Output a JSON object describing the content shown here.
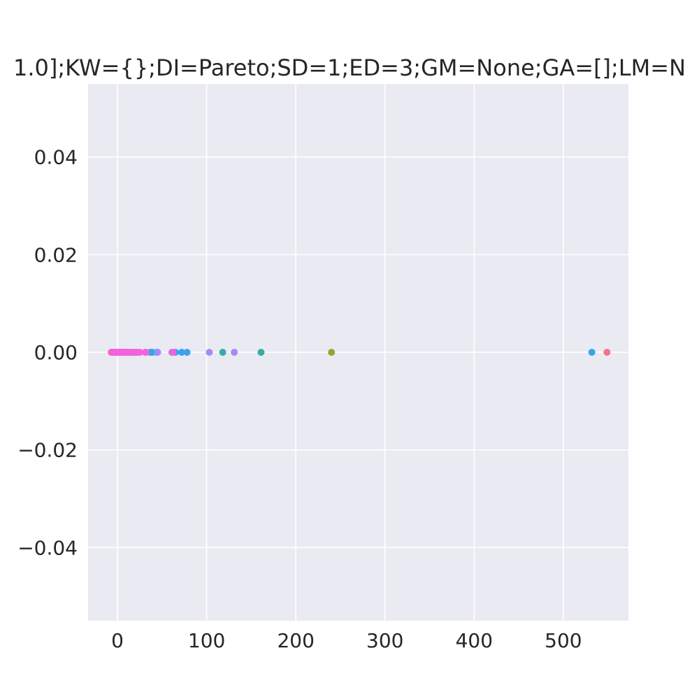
{
  "chart_data": {
    "type": "scatter",
    "title": "1.0];KW={};DI=Pareto;SD=1;ED=3;GM=None;GA=[];LM=N",
    "xlabel": "",
    "ylabel": "",
    "xlim": [
      -33,
      573
    ],
    "ylim": [
      -0.055,
      0.055
    ],
    "x_ticks": [
      0,
      100,
      200,
      300,
      400,
      500
    ],
    "y_ticks": [
      0.04,
      0.02,
      0.0,
      -0.02,
      -0.04
    ],
    "x_tick_labels": [
      "0",
      "100",
      "200",
      "300",
      "400",
      "500"
    ],
    "y_tick_labels": [
      "0.04",
      "0.02",
      "0.00",
      "−0.02",
      "−0.04"
    ],
    "grid": true,
    "legend": "none",
    "colors": {
      "background": "#eaeaf2",
      "grid": "#ffffff",
      "text": "#262626"
    },
    "series": [
      {
        "color": "#f77189",
        "x": [
          -7,
          -5,
          -3,
          0,
          3,
          6,
          10,
          14,
          549
        ],
        "y": [
          0,
          0,
          0,
          0,
          0,
          0,
          0,
          0,
          0
        ]
      },
      {
        "color": "#97a431",
        "x": [
          -6,
          -2,
          2,
          5,
          9,
          240
        ],
        "y": [
          0,
          0,
          0,
          0,
          0,
          0
        ]
      },
      {
        "color": "#36ada4",
        "x": [
          -5,
          0,
          4,
          12,
          20,
          37,
          118,
          161
        ],
        "y": [
          0,
          0,
          0,
          0,
          0,
          0,
          0,
          0
        ]
      },
      {
        "color": "#3ba3ec",
        "x": [
          -4,
          1,
          7,
          16,
          39,
          44,
          65,
          72,
          78,
          532
        ],
        "y": [
          0,
          0,
          0,
          0,
          0,
          0,
          0,
          0,
          0,
          0
        ]
      },
      {
        "color": "#a48cf4",
        "x": [
          -3,
          2,
          8,
          22,
          32,
          45,
          61,
          103,
          131
        ],
        "y": [
          0,
          0,
          0,
          0,
          0,
          0,
          0,
          0,
          0
        ]
      },
      {
        "color": "#f561dd",
        "x": [
          -6,
          -4,
          -2,
          0,
          2,
          4,
          6,
          8,
          10,
          12,
          15,
          18,
          21,
          25,
          31,
          62
        ],
        "y": [
          0,
          0,
          0,
          0,
          0,
          0,
          0,
          0,
          0,
          0,
          0,
          0,
          0,
          0,
          0,
          0
        ]
      }
    ]
  }
}
